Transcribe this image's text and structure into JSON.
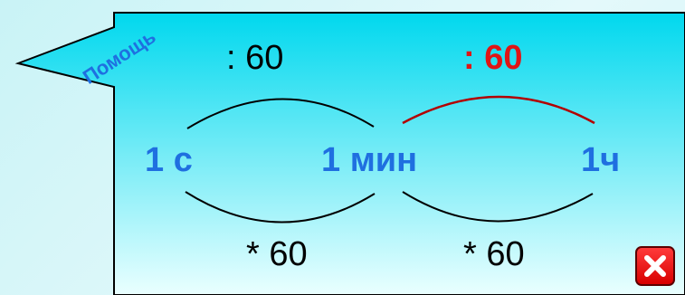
{
  "help_label": "Помощь",
  "units": {
    "second": "1 с",
    "minute": "1 мин",
    "hour": "1ч"
  },
  "operations": {
    "top_left": ": 60",
    "top_right": ": 60",
    "bottom_left": "* 60",
    "bottom_right": "* 60"
  },
  "colors": {
    "unit_text": "#1f6fe0",
    "help_text": "#1f6fe0",
    "highlight": "#e01515",
    "arc": "#000000",
    "frame": "#000000",
    "background_top": "#00d8ee",
    "background_bottom": "#eaffff",
    "close_button": "#e60000"
  },
  "icons": {
    "close": "close-x-icon"
  }
}
